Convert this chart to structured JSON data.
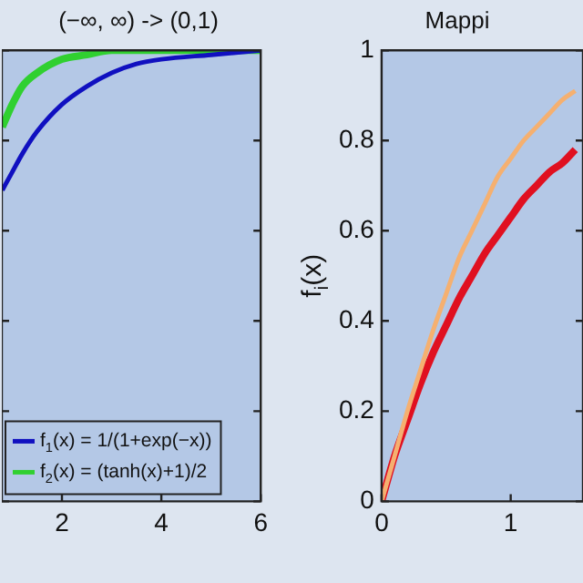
{
  "chart_data": [
    {
      "type": "line",
      "title": "(−∞, ∞) -> (0,1)",
      "x": [
        0.8,
        1,
        1.2,
        1.5,
        2,
        2.5,
        3,
        3.5,
        4,
        5,
        6
      ],
      "xlim": [
        0.79,
        6
      ],
      "xticks": [
        2,
        4,
        6
      ],
      "ylim": [
        0,
        1
      ],
      "yticks": [
        0,
        0.2,
        0.4,
        0.6,
        0.8,
        1
      ],
      "tick_labels": "x",
      "legend": "bottom left",
      "marker": "none",
      "series": [
        {
          "name": "f$_{1}$(x) = 1/(1+exp(−x))",
          "color": "#1010c0",
          "values": [
            0.69,
            0.73,
            0.77,
            0.82,
            0.88,
            0.92,
            0.95,
            0.97,
            0.98,
            0.99,
            1.0
          ]
        },
        {
          "name": "f$_{2}$(x) = (tanh(x)+1)/2",
          "color": "#30d030",
          "values": [
            0.83,
            0.88,
            0.92,
            0.95,
            0.98,
            0.99,
            1.0,
            1.0,
            1.0,
            1.0,
            1.0
          ]
        }
      ]
    },
    {
      "type": "line",
      "title": "Mappi",
      "ylabel": "f$_{i}$(x)",
      "x": [
        0,
        0.1,
        0.2,
        0.3,
        0.4,
        0.5,
        0.6,
        0.7,
        0.8,
        0.9,
        1,
        1.1,
        1.2,
        1.3,
        1.4,
        1.5
      ],
      "xlim": [
        0,
        1.56
      ],
      "xticks": [
        0,
        1
      ],
      "ylim": [
        0,
        1
      ],
      "yticks": [
        0,
        0.2,
        0.4,
        0.6,
        0.8,
        1
      ],
      "marker": "none",
      "legend": false,
      "series": [
        {
          "color": "#f5b070",
          "values": [
            0,
            0.1,
            0.2,
            0.29,
            0.38,
            0.46,
            0.54,
            0.6,
            0.66,
            0.72,
            0.76,
            0.8,
            0.83,
            0.86,
            0.89,
            0.91
          ]
        },
        {
          "color": "#e01020",
          "values": [
            0,
            0.1,
            0.18,
            0.26,
            0.33,
            0.39,
            0.45,
            0.5,
            0.55,
            0.59,
            0.63,
            0.67,
            0.7,
            0.73,
            0.75,
            0.78
          ]
        }
      ]
    }
  ]
}
